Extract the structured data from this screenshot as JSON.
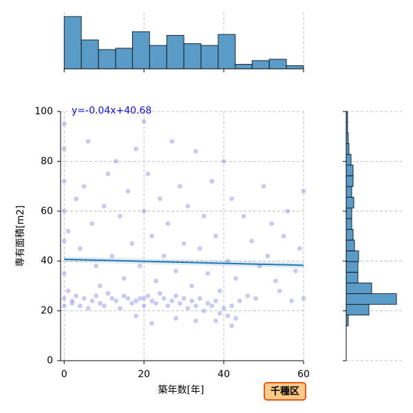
{
  "chart_data": {
    "type": "jointplot",
    "xlabel": "築年数[年]",
    "ylabel": "専有面積[m2]",
    "badge": "千種区",
    "xlim": [
      -0.9,
      60
    ],
    "ylim": [
      0,
      100
    ],
    "xticks": [
      0,
      20,
      40,
      60
    ],
    "yticks": [
      0,
      20,
      40,
      60,
      80,
      100
    ],
    "grid": true,
    "point_color": "#6464d8",
    "line_color": "#1f77b4",
    "hist_color": "#5a9bc8",
    "regression": {
      "label": "y=-0.04x+40.68",
      "slope": -0.04,
      "intercept": 40.68
    },
    "x": [
      0,
      0,
      0,
      0,
      0,
      0,
      0,
      0,
      1,
      1,
      2,
      2,
      3,
      3,
      4,
      4,
      5,
      5,
      6,
      6,
      7,
      7,
      8,
      8,
      9,
      9,
      10,
      10,
      11,
      11,
      12,
      12,
      13,
      13,
      14,
      14,
      15,
      15,
      16,
      16,
      17,
      17,
      18,
      18,
      19,
      19,
      20,
      20,
      20,
      20,
      21,
      21,
      22,
      22,
      23,
      23,
      24,
      24,
      25,
      25,
      26,
      26,
      27,
      27,
      28,
      28,
      29,
      29,
      30,
      30,
      31,
      31,
      32,
      32,
      33,
      33,
      34,
      34,
      35,
      35,
      36,
      36,
      37,
      37,
      38,
      38,
      39,
      39,
      40,
      40,
      41,
      41,
      42,
      42,
      43,
      43,
      44,
      45,
      46,
      47,
      48,
      49,
      50,
      51,
      52,
      53,
      54,
      55,
      56,
      57,
      58,
      59,
      60,
      60,
      18,
      22,
      28,
      33,
      38,
      42
    ],
    "values": [
      25,
      48,
      60,
      72,
      85,
      95,
      22,
      35,
      28,
      52,
      23,
      24,
      26,
      65,
      22,
      45,
      25,
      70,
      21,
      88,
      24,
      55,
      26,
      38,
      23,
      30,
      22,
      62,
      27,
      75,
      25,
      42,
      24,
      80,
      21,
      58,
      26,
      33,
      25,
      68,
      23,
      47,
      24,
      85,
      25,
      38,
      22,
      25,
      96,
      60,
      26,
      75,
      24,
      50,
      23,
      32,
      27,
      65,
      25,
      42,
      22,
      55,
      24,
      88,
      26,
      36,
      23,
      70,
      25,
      47,
      21,
      62,
      24,
      30,
      22,
      84,
      25,
      45,
      20,
      58,
      23,
      35,
      22,
      72,
      24,
      50,
      19,
      28,
      21,
      80,
      18,
      40,
      22,
      65,
      17,
      33,
      24,
      58,
      26,
      48,
      25,
      38,
      70,
      42,
      55,
      32,
      28,
      50,
      60,
      24,
      36,
      45,
      25,
      68,
      18,
      15,
      17,
      16,
      16,
      14
    ],
    "x_hist": {
      "bins": [
        0,
        4.3,
        8.6,
        12.9,
        17.1,
        21.4,
        25.7,
        30,
        34.3,
        38.6,
        42.9,
        47.1,
        51.4,
        55.7,
        60
      ],
      "counts": [
        114,
        63,
        42,
        45,
        81,
        51,
        73,
        55,
        51,
        75,
        10,
        18,
        21,
        7
      ]
    },
    "y_hist": {
      "bins": [
        14,
        18.3,
        22.6,
        26.9,
        31.2,
        35.5,
        39.8,
        44.1,
        48.4,
        52.7,
        57,
        61.3,
        65.6,
        69.9,
        74.2,
        78.5,
        82.8,
        87.1,
        91.4,
        95.7,
        100
      ],
      "counts": [
        3,
        33,
        73,
        37,
        17,
        17,
        18,
        12,
        10,
        8,
        8,
        11,
        8,
        10,
        10,
        7,
        4,
        3,
        2,
        2
      ]
    }
  }
}
